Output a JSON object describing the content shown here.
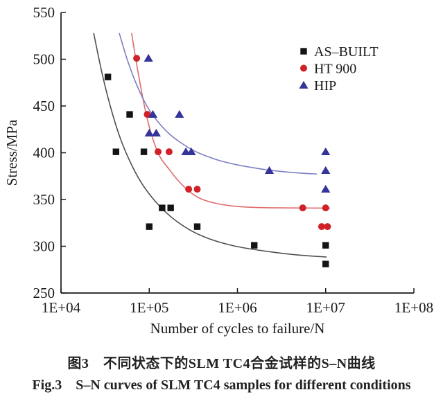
{
  "captions": {
    "zh": "图3　不同状态下的SLM TC4合金试样的S–N曲线",
    "en": "Fig.3　S–N curves of SLM TC4 samples for different conditions"
  },
  "chart_data": {
    "type": "scatter",
    "title": "",
    "xlabel": "Number of cycles to failure/N",
    "ylabel": "Stress/MPa",
    "x_scale": "log10",
    "xlim_log10": [
      4,
      8
    ],
    "ylim": [
      250,
      550
    ],
    "grid": false,
    "x_ticks": [
      {
        "log10": 4,
        "label": "1E+04"
      },
      {
        "log10": 5,
        "label": "1E+05"
      },
      {
        "log10": 6,
        "label": "1E+06"
      },
      {
        "log10": 7,
        "label": "1E+07"
      },
      {
        "log10": 8,
        "label": "1E+08"
      }
    ],
    "y_ticks": [
      250,
      300,
      350,
      400,
      450,
      500,
      550
    ],
    "legend": {
      "position": "upper-right",
      "items": [
        "AS–BUILT",
        "HT 900",
        "HIP"
      ]
    },
    "axis_color": "#1a1a1a",
    "series": [
      {
        "name": "AS–BUILT",
        "marker": "square",
        "marker_color": "#141414",
        "curve_color": "#4f4f4f",
        "points_cycles_stress": [
          [
            34000,
            481
          ],
          [
            60000,
            441
          ],
          [
            42000,
            401
          ],
          [
            87000,
            401
          ],
          [
            140000,
            341
          ],
          [
            175000,
            341
          ],
          [
            100000,
            321
          ],
          [
            350000,
            321
          ],
          [
            1550000,
            301
          ],
          [
            10000000,
            301
          ],
          [
            10000000,
            281
          ]
        ],
        "fit_curve_log10x_y": [
          [
            4.37,
            528
          ],
          [
            4.47,
            483
          ],
          [
            4.57,
            446
          ],
          [
            4.67,
            416
          ],
          [
            4.78,
            391
          ],
          [
            4.91,
            368
          ],
          [
            5.06,
            349
          ],
          [
            5.24,
            332
          ],
          [
            5.45,
            318
          ],
          [
            5.68,
            308
          ],
          [
            5.98,
            300
          ],
          [
            6.3,
            295
          ],
          [
            6.65,
            291
          ],
          [
            7.01,
            288.5
          ]
        ]
      },
      {
        "name": "HT 900",
        "marker": "circle",
        "marker_color": "#cf2127",
        "curve_color": "#e06a6a",
        "points_cycles_stress": [
          [
            72000,
            501
          ],
          [
            95000,
            441
          ],
          [
            126000,
            401
          ],
          [
            168000,
            401
          ],
          [
            280000,
            361
          ],
          [
            350000,
            361
          ],
          [
            5500000,
            341
          ],
          [
            10000000,
            341
          ],
          [
            9000000,
            321
          ],
          [
            10500000,
            321
          ]
        ],
        "fit_curve_log10x_y": [
          [
            4.8,
            528
          ],
          [
            4.87,
            488
          ],
          [
            4.95,
            448
          ],
          [
            5.03,
            418
          ],
          [
            5.12,
            396
          ],
          [
            5.22,
            383
          ],
          [
            5.33,
            370
          ],
          [
            5.45,
            359
          ],
          [
            5.58,
            351
          ],
          [
            5.75,
            346
          ],
          [
            5.95,
            343
          ],
          [
            6.2,
            341.5
          ],
          [
            6.6,
            341
          ],
          [
            7.05,
            340.8
          ]
        ]
      },
      {
        "name": "HIP",
        "marker": "triangle",
        "marker_color": "#34349a",
        "curve_color": "#7c7ec2",
        "points_cycles_stress": [
          [
            98000,
            501
          ],
          [
            110000,
            441
          ],
          [
            220000,
            441
          ],
          [
            100000,
            421
          ],
          [
            120000,
            421
          ],
          [
            260000,
            401
          ],
          [
            300000,
            401
          ],
          [
            10000000,
            401
          ],
          [
            2300000,
            381
          ],
          [
            10000000,
            381
          ],
          [
            10000000,
            361
          ]
        ],
        "fit_curve_log10x_y": [
          [
            4.66,
            528
          ],
          [
            4.76,
            497
          ],
          [
            4.87,
            470
          ],
          [
            4.98,
            449
          ],
          [
            5.1,
            433
          ],
          [
            5.23,
            420
          ],
          [
            5.37,
            410
          ],
          [
            5.51,
            402
          ],
          [
            5.66,
            396
          ],
          [
            5.82,
            391
          ],
          [
            6.0,
            387
          ],
          [
            6.18,
            384
          ],
          [
            6.35,
            381.5
          ],
          [
            6.55,
            379.5
          ],
          [
            6.75,
            378
          ],
          [
            6.9,
            377.3
          ]
        ]
      }
    ]
  }
}
